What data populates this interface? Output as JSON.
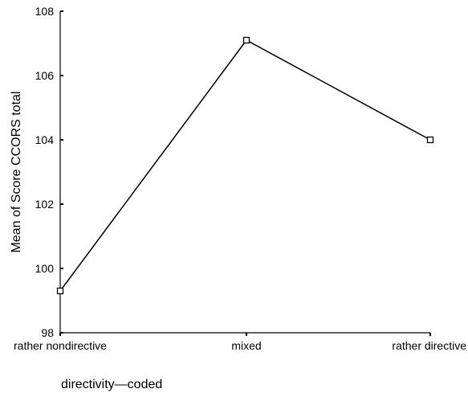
{
  "chart_data": {
    "type": "line",
    "title": "",
    "xlabel": "directivity—coded",
    "ylabel": "Mean of Score CCORS total",
    "categories": [
      "rather nondirective",
      "mixed",
      "rather directive"
    ],
    "series": [
      {
        "values": [
          99.3,
          107.1,
          104.0
        ]
      }
    ],
    "ylim": [
      98,
      108
    ],
    "yticks": [
      "98",
      "100",
      "102",
      "104",
      "106",
      "108"
    ],
    "marker": "open-square",
    "grid": false,
    "legend": "none",
    "line_color": "#000000"
  }
}
